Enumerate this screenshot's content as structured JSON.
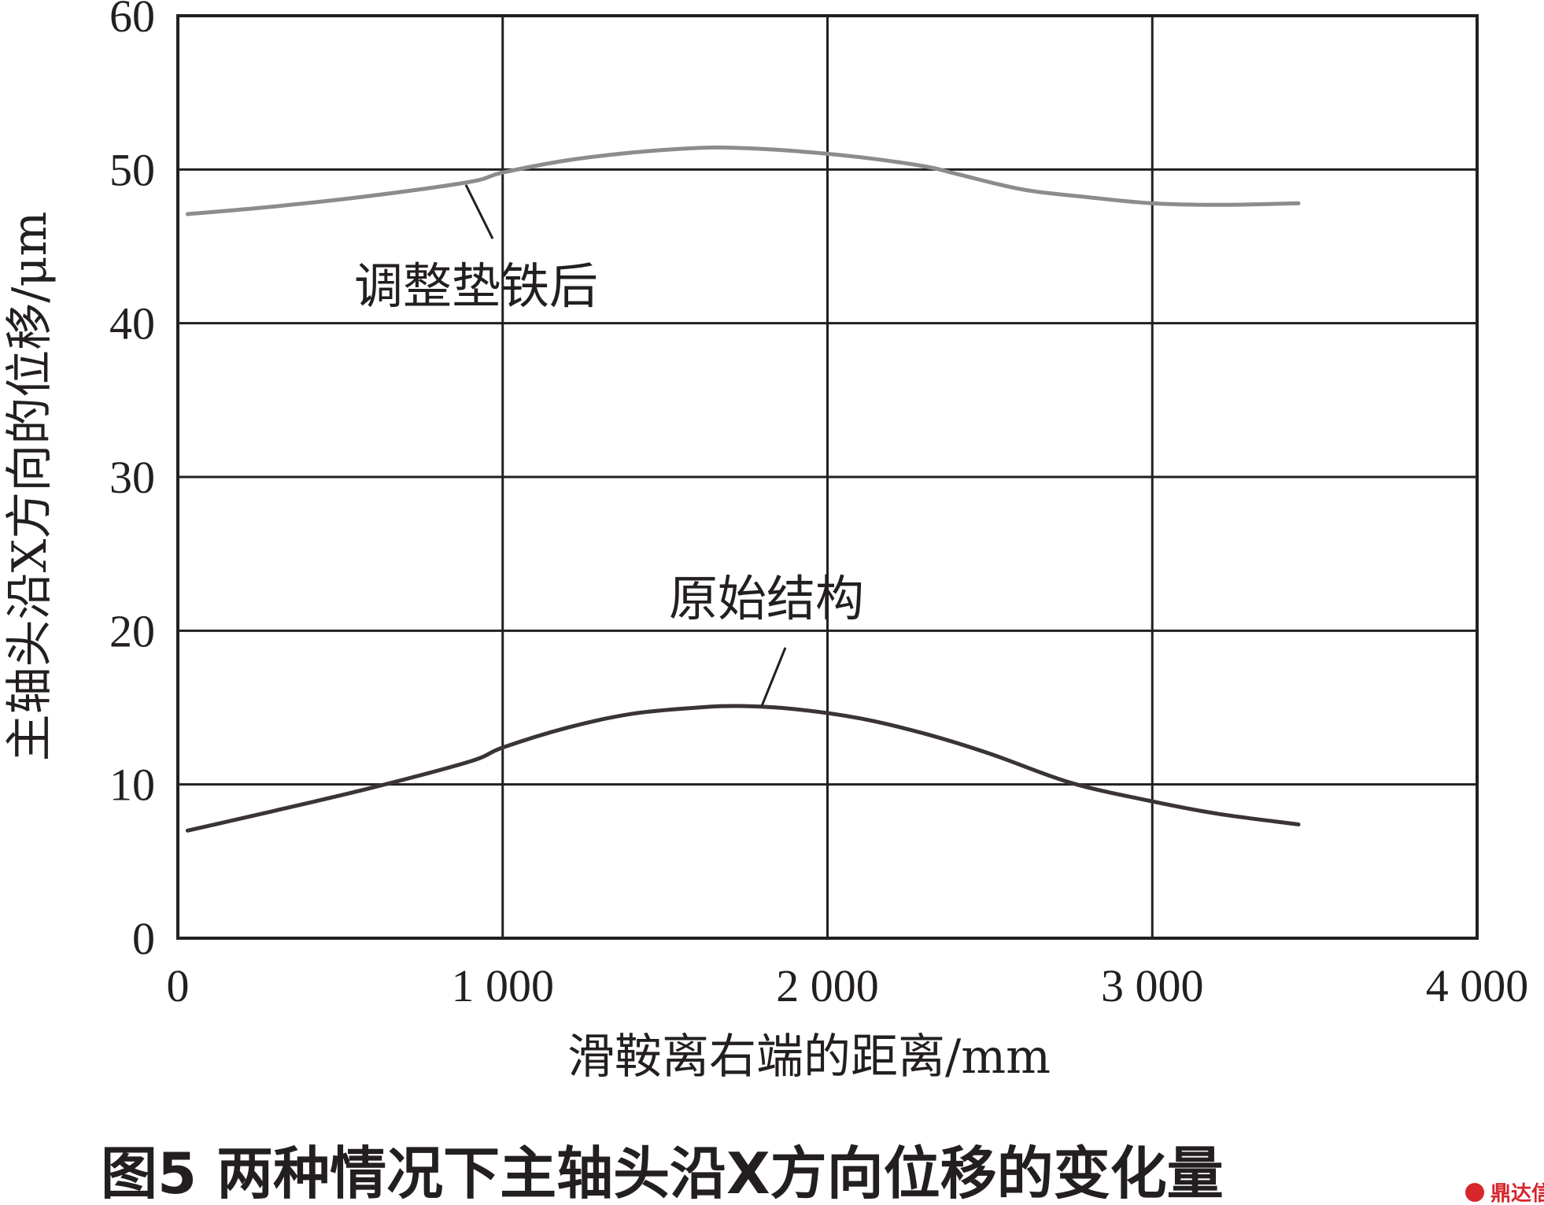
{
  "chart_data": {
    "type": "line",
    "caption": "图5  两种情况下主轴头沿X方向位移的变化量",
    "xlabel": "滑鞍离右端的距离/mm",
    "ylabel": "主轴头沿X方向的位移/μm",
    "xlim": [
      0,
      4000
    ],
    "ylim": [
      0,
      60
    ],
    "x_ticks": [
      0,
      1000,
      2000,
      3000,
      4000
    ],
    "x_tick_labels": [
      "0",
      "1 000",
      "2 000",
      "3 000",
      "4 000"
    ],
    "y_ticks": [
      0,
      10,
      20,
      30,
      40,
      50,
      60
    ],
    "y_tick_labels": [
      "0",
      "10",
      "20",
      "30",
      "40",
      "50",
      "60"
    ],
    "grid": true,
    "series": [
      {
        "name": "调整垫铁后",
        "color": "#8c8c8c",
        "x": [
          30,
          300,
          600,
          900,
          1000,
          1200,
          1400,
          1600,
          1730,
          1900,
          2100,
          2300,
          2400,
          2600,
          2800,
          3000,
          3200,
          3450
        ],
        "y": [
          47.1,
          47.6,
          48.3,
          49.2,
          49.8,
          50.6,
          51.1,
          51.4,
          51.4,
          51.2,
          50.8,
          50.2,
          49.7,
          48.7,
          48.2,
          47.8,
          47.7,
          47.8
        ]
      },
      {
        "name": "原始结构",
        "color": "#3a3436",
        "x": [
          30,
          300,
          600,
          900,
          1000,
          1200,
          1400,
          1600,
          1730,
          1900,
          2100,
          2300,
          2500,
          2750,
          3000,
          3200,
          3450
        ],
        "y": [
          7.0,
          8.3,
          9.8,
          11.5,
          12.4,
          13.7,
          14.6,
          15.0,
          15.1,
          14.9,
          14.3,
          13.3,
          12.0,
          10.1,
          8.9,
          8.1,
          7.4
        ]
      }
    ],
    "annotations": [
      {
        "text": "调整垫铁后",
        "series": "调整垫铁后"
      },
      {
        "text": "原始结构",
        "series": "原始结构"
      }
    ]
  },
  "watermark": {
    "text": "鼎达信",
    "color": "#d7262c"
  }
}
